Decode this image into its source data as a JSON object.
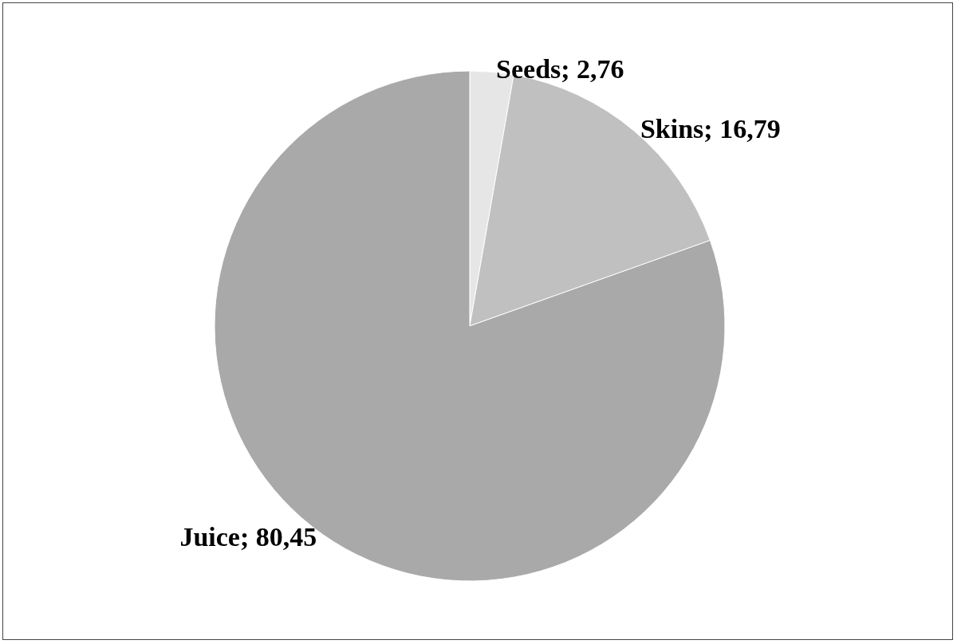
{
  "chart_data": {
    "type": "pie",
    "categories": [
      "Seeds",
      "Skins",
      "Juice"
    ],
    "values": [
      2.76,
      16.79,
      80.45
    ],
    "colors": [
      "#e6e6e6",
      "#c0c0c0",
      "#a9a9a9"
    ],
    "value_labels": [
      "2,76",
      "16,79",
      "80,45"
    ],
    "legend": false
  }
}
